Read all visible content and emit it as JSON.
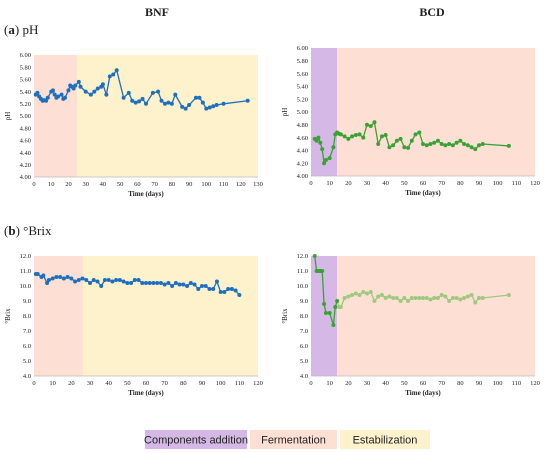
{
  "headers": {
    "left": "BNF",
    "right": "BCD"
  },
  "panels": {
    "a": {
      "letter": "a",
      "name": "pH"
    },
    "b": {
      "letter": "b",
      "name": "°Brix"
    }
  },
  "legend": [
    {
      "label": "Components addition",
      "color": "#d5b8e6"
    },
    {
      "label": "Fermentation",
      "color": "#fde0d3"
    },
    {
      "label": "Estabilization",
      "color": "#fdf2cb"
    }
  ],
  "chart_data": [
    {
      "id": "ph-bnf",
      "type": "line",
      "line_color": "#1f6fc0",
      "xlabel": "Time (days)",
      "ylabel": "pH",
      "xlim": [
        0,
        130
      ],
      "ylim": [
        4.0,
        6.0
      ],
      "xticks": [
        "0",
        "10",
        "20",
        "30",
        "40",
        "50",
        "60",
        "70",
        "80",
        "90",
        "100",
        "110",
        "120",
        "130"
      ],
      "yticks": [
        "4.00",
        "4.20",
        "4.40",
        "4.60",
        "4.80",
        "5.00",
        "5.20",
        "5.40",
        "5.60",
        "5.80",
        "6.00"
      ],
      "shading": [
        {
          "phase": "Fermentation",
          "x": [
            0,
            25
          ],
          "color": "#fde0d3"
        },
        {
          "phase": "Estabilization",
          "x": [
            25,
            130
          ],
          "color": "#fdf2cb"
        }
      ],
      "series": [
        {
          "x": [
            1,
            2,
            3,
            4,
            5,
            6,
            7,
            8,
            10,
            11,
            12,
            13,
            14,
            16,
            17,
            18,
            20,
            21,
            22,
            23,
            24,
            26,
            27,
            30,
            33,
            35,
            37,
            39,
            40,
            42,
            44,
            46,
            48,
            52,
            55,
            57,
            59,
            61,
            63,
            65,
            69,
            72,
            74,
            76,
            78,
            80,
            82,
            86,
            88,
            90,
            94,
            96,
            98,
            100,
            102,
            104,
            106,
            110,
            124
          ],
          "y": [
            5.35,
            5.38,
            5.32,
            5.28,
            5.25,
            5.26,
            5.25,
            5.3,
            5.4,
            5.42,
            5.35,
            5.3,
            5.32,
            5.35,
            5.28,
            5.3,
            5.42,
            5.5,
            5.48,
            5.45,
            5.5,
            5.56,
            5.48,
            5.4,
            5.35,
            5.4,
            5.45,
            5.48,
            5.52,
            5.35,
            5.65,
            5.68,
            5.75,
            5.3,
            5.38,
            5.25,
            5.22,
            5.24,
            5.28,
            5.2,
            5.38,
            5.4,
            5.25,
            5.2,
            5.22,
            5.2,
            5.35,
            5.15,
            5.12,
            5.18,
            5.3,
            5.3,
            5.22,
            5.12,
            5.14,
            5.16,
            5.18,
            5.2,
            5.25
          ]
        }
      ]
    },
    {
      "id": "ph-bcd",
      "type": "line",
      "line_color": "#3aa235",
      "xlabel": "Time (days)",
      "ylabel": "pH",
      "xlim": [
        0,
        120
      ],
      "ylim": [
        4.0,
        6.0
      ],
      "xticks": [
        "0",
        "10",
        "20",
        "30",
        "40",
        "50",
        "60",
        "70",
        "80",
        "90",
        "100",
        "110",
        "120"
      ],
      "yticks": [
        "4.00",
        "4.20",
        "4.40",
        "4.60",
        "4.80",
        "5.00",
        "5.20",
        "5.40",
        "5.60",
        "5.80",
        "6.00"
      ],
      "shading": [
        {
          "phase": "Components addition",
          "x": [
            0,
            14
          ],
          "color": "#d5b8e6"
        },
        {
          "phase": "Fermentation",
          "x": [
            14,
            120
          ],
          "color": "#fde0d3"
        }
      ],
      "series": [
        {
          "x": [
            2,
            3,
            4,
            5,
            6,
            7,
            8,
            10,
            12,
            13,
            14,
            15,
            16,
            18,
            20,
            22,
            24,
            26,
            28,
            30,
            32,
            34,
            36,
            38,
            40,
            42,
            44,
            46,
            48,
            50,
            52,
            54,
            56,
            58,
            60,
            62,
            64,
            66,
            68,
            70,
            72,
            74,
            76,
            78,
            80,
            82,
            84,
            86,
            88,
            90,
            92,
            106
          ],
          "y": [
            4.58,
            4.55,
            4.6,
            4.52,
            4.42,
            4.2,
            4.25,
            4.28,
            4.45,
            4.65,
            4.68,
            4.66,
            4.65,
            4.62,
            4.58,
            4.62,
            4.64,
            4.65,
            4.6,
            4.8,
            4.78,
            4.84,
            4.5,
            4.62,
            4.64,
            4.45,
            4.48,
            4.55,
            4.58,
            4.45,
            4.44,
            4.55,
            4.65,
            4.68,
            4.5,
            4.48,
            4.5,
            4.52,
            4.55,
            4.5,
            4.48,
            4.5,
            4.48,
            4.52,
            4.55,
            4.5,
            4.48,
            4.45,
            4.42,
            4.48,
            4.5,
            4.47
          ]
        }
      ]
    },
    {
      "id": "brix-bnf",
      "type": "line",
      "line_color": "#1f6fc0",
      "xlabel": "Time (days)",
      "ylabel": "°Brix",
      "xlim": [
        0,
        120
      ],
      "ylim": [
        4.0,
        12.0
      ],
      "xticks": [
        "0",
        "10",
        "20",
        "30",
        "40",
        "50",
        "60",
        "70",
        "80",
        "90",
        "100",
        "110",
        "120"
      ],
      "yticks": [
        "4.0",
        "5.0",
        "6.0",
        "7.0",
        "8.0",
        "9.0",
        "10.0",
        "11.0",
        "12.0"
      ],
      "shading": [
        {
          "phase": "Fermentation",
          "x": [
            0,
            26
          ],
          "color": "#fde0d3"
        },
        {
          "phase": "Estabilization",
          "x": [
            26,
            120
          ],
          "color": "#fdf2cb"
        }
      ],
      "series": [
        {
          "x": [
            1,
            2,
            4,
            5,
            7,
            8,
            10,
            12,
            14,
            16,
            18,
            20,
            22,
            24,
            26,
            28,
            30,
            32,
            34,
            36,
            38,
            40,
            42,
            44,
            46,
            48,
            50,
            52,
            54,
            56,
            58,
            60,
            62,
            64,
            66,
            68,
            70,
            72,
            74,
            76,
            78,
            80,
            82,
            84,
            86,
            88,
            90,
            92,
            94,
            96,
            98,
            100,
            102,
            104,
            106,
            108,
            110
          ],
          "y": [
            10.8,
            10.8,
            10.6,
            10.7,
            10.2,
            10.4,
            10.5,
            10.6,
            10.6,
            10.5,
            10.6,
            10.5,
            10.3,
            10.4,
            10.5,
            10.4,
            10.2,
            10.4,
            10.3,
            10.0,
            10.4,
            10.4,
            10.3,
            10.4,
            10.4,
            10.3,
            10.2,
            10.2,
            10.4,
            10.4,
            10.2,
            10.2,
            10.2,
            10.2,
            10.2,
            10.2,
            10.1,
            10.2,
            10.0,
            10.2,
            10.1,
            10.1,
            10.0,
            10.2,
            10.1,
            9.8,
            10.0,
            10.0,
            9.8,
            9.8,
            10.3,
            9.6,
            9.6,
            9.8,
            9.8,
            9.7,
            9.4
          ]
        }
      ]
    },
    {
      "id": "brix-bcd",
      "type": "line",
      "line_color": "#3aa235",
      "line_color_after": "#9ec97f",
      "xlabel": "Time (days)",
      "ylabel": "°Brix",
      "xlim": [
        0,
        120
      ],
      "ylim": [
        4.0,
        12.0
      ],
      "xticks": [
        "0",
        "10",
        "20",
        "30",
        "40",
        "50",
        "60",
        "70",
        "80",
        "90",
        "100",
        "110",
        "120"
      ],
      "yticks": [
        "4.0",
        "5.0",
        "6.0",
        "7.0",
        "8.0",
        "9.0",
        "10.0",
        "11.0",
        "12.0"
      ],
      "shading": [
        {
          "phase": "Components addition",
          "x": [
            0,
            14
          ],
          "color": "#d5b8e6"
        },
        {
          "phase": "Fermentation",
          "x": [
            14,
            120
          ],
          "color": "#fde0d3"
        }
      ],
      "series": [
        {
          "x": [
            2,
            3,
            4,
            5,
            6,
            7,
            8,
            10,
            12,
            13,
            14,
            15,
            16,
            18,
            20,
            22,
            24,
            26,
            28,
            30,
            32,
            34,
            36,
            38,
            40,
            42,
            44,
            46,
            48,
            50,
            52,
            54,
            56,
            58,
            60,
            62,
            64,
            66,
            68,
            70,
            72,
            74,
            76,
            78,
            80,
            82,
            84,
            86,
            88,
            90,
            92,
            106
          ],
          "y": [
            12.0,
            11.0,
            11.0,
            11.0,
            11.0,
            8.8,
            8.2,
            8.2,
            7.4,
            8.6,
            9.0,
            8.6,
            8.6,
            9.2,
            9.3,
            9.4,
            9.5,
            9.4,
            9.6,
            9.5,
            9.6,
            9.0,
            9.3,
            9.4,
            9.2,
            9.3,
            9.2,
            9.2,
            9.0,
            9.2,
            9.0,
            9.2,
            9.2,
            9.2,
            9.2,
            9.2,
            9.1,
            9.2,
            9.2,
            9.4,
            9.3,
            9.0,
            9.2,
            9.2,
            9.1,
            9.2,
            9.3,
            9.4,
            8.9,
            9.2,
            9.2,
            9.4
          ]
        }
      ]
    }
  ]
}
